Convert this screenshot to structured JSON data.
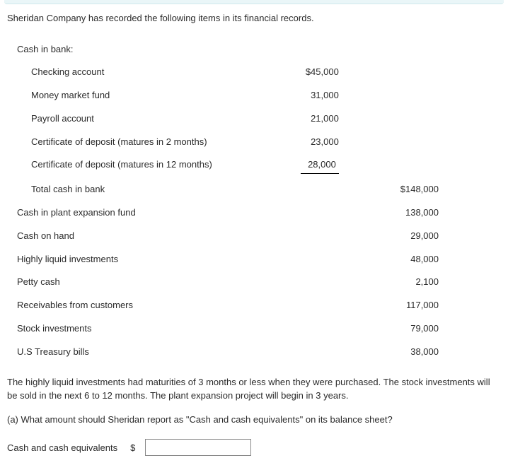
{
  "intro": "Sheridan Company has recorded the following items in its financial records.",
  "headers": {
    "cash_in_bank": "Cash in bank:"
  },
  "bank": {
    "checking": {
      "label": "Checking account",
      "value": "$45,000"
    },
    "mmf": {
      "label": "Money market fund",
      "value": "31,000"
    },
    "payroll": {
      "label": "Payroll account",
      "value": "21,000"
    },
    "cd2": {
      "label": "Certificate of deposit (matures in 2 months)",
      "value": "23,000"
    },
    "cd12": {
      "label": "Certificate of deposit (matures in 12 months)",
      "value": "28,000"
    },
    "total": {
      "label": "Total cash in bank",
      "value": "$148,000"
    }
  },
  "other": {
    "plant": {
      "label": "Cash in plant expansion fund",
      "value": "138,000"
    },
    "onhand": {
      "label": "Cash on hand",
      "value": "29,000"
    },
    "liquid": {
      "label": "Highly liquid investments",
      "value": "48,000"
    },
    "petty": {
      "label": "Petty cash",
      "value": "2,100"
    },
    "receivables": {
      "label": "Receivables from customers",
      "value": "117,000"
    },
    "stock": {
      "label": "Stock investments",
      "value": "79,000"
    },
    "tbills": {
      "label": "U.S Treasury bills",
      "value": "38,000"
    }
  },
  "notes": "The highly liquid investments had maturities of 3 months or less when they were purchased. The stock investments will be sold in the next 6 to 12 months. The plant expansion project will begin in 3 years.",
  "question": "(a) What amount should Sheridan report as \"Cash and cash equivalents\" on its balance sheet?",
  "answer": {
    "label": "Cash and cash equivalents",
    "currency": "$",
    "value": ""
  }
}
